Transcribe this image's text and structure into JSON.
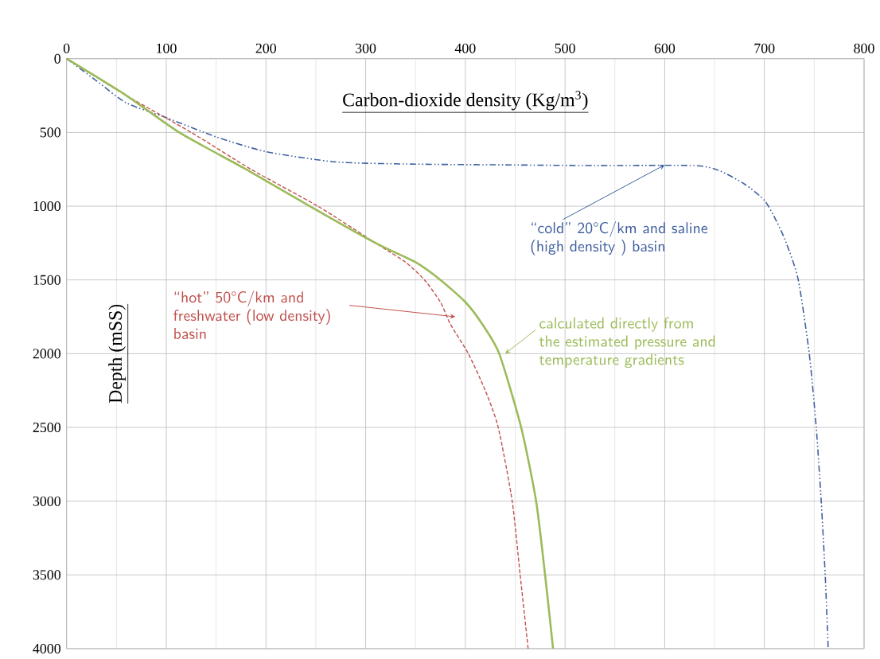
{
  "chart_data": {
    "type": "line",
    "xlabel": "Carbon-dioxide density (Kg/m$^{3}$)",
    "ylabel": "Depth (mSS)",
    "xlim": [
      0,
      800
    ],
    "ylim": [
      4000,
      0
    ],
    "xticks": [
      0,
      100,
      200,
      300,
      400,
      500,
      600,
      700,
      800
    ],
    "yticks": [
      0,
      500,
      1000,
      1500,
      2000,
      2500,
      3000,
      3500,
      4000
    ],
    "grid": true,
    "marker": "none",
    "series": [
      {
        "color": "#3f5f9f",
        "line_style": "dashdot",
        "x": [
          0,
          30,
          60,
          100,
          150,
          200,
          270,
          350,
          440,
          530,
          630,
          655,
          680,
          700,
          712,
          722,
          734,
          745,
          752,
          757,
          761,
          764
        ],
        "values": [
          0,
          150,
          300,
          400,
          530,
          630,
          700,
          715,
          720,
          725,
          725,
          760,
          850,
          960,
          1100,
          1250,
          1500,
          2000,
          2500,
          3000,
          3500,
          4000
        ]
      },
      {
        "color": "#c0504d",
        "line_style": "dashed",
        "x": [
          0,
          60,
          125,
          185,
          252,
          310,
          340,
          359,
          375,
          385,
          403,
          420,
          433,
          447,
          455,
          463
        ],
        "values": [
          0,
          250,
          500,
          750,
          1000,
          1250,
          1380,
          1500,
          1650,
          1800,
          2000,
          2250,
          2500,
          3000,
          3500,
          4000
        ]
      },
      {
        "color": "#9bbb59",
        "line_style": "solid",
        "x": [
          0,
          60,
          113,
          180,
          244,
          310,
          350,
          375,
          400,
          417,
          434,
          456,
          471,
          480,
          488
        ],
        "values": [
          0,
          250,
          500,
          750,
          1000,
          1250,
          1380,
          1500,
          1650,
          1800,
          2000,
          2500,
          3000,
          3500,
          4000
        ]
      }
    ],
    "annotations": [
      {
        "text": "“cold”  20°C/km  and saline  (high density ) basin",
        "x": 600,
        "y": 720
      },
      {
        "text": "“hot” 50°C/km and freshwater (low density) basin",
        "x": 390,
        "y": 1750
      },
      {
        "text": "calculated directly from the estimated pressure and temperature gradients",
        "x": 440,
        "y": 2000
      }
    ]
  }
}
